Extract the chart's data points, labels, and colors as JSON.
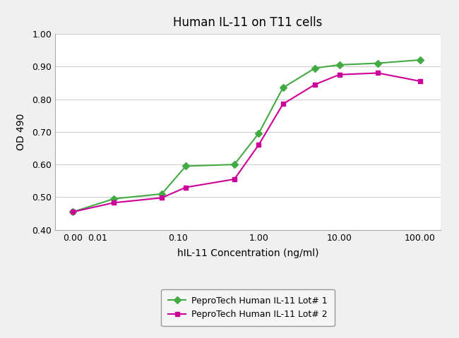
{
  "title": "Human IL-11 on T11 cells",
  "xlabel": "hIL-11 Concentration (ng/ml)",
  "ylabel": "OD 490",
  "lot1_label": "PeproTech Human IL-11 Lot# 1",
  "lot2_label": "PeproTech Human IL-11 Lot# 2",
  "lot1_color": "#44aa44",
  "lot2_color": "#cc0099",
  "lot1_x": [
    0.0,
    0.016,
    0.063,
    0.125,
    0.5,
    1.0,
    2.0,
    5.0,
    10.0,
    30.0,
    100.0
  ],
  "lot1_y": [
    0.455,
    0.495,
    0.51,
    0.595,
    0.6,
    0.695,
    0.835,
    0.895,
    0.905,
    0.91,
    0.92
  ],
  "lot2_x": [
    0.0,
    0.016,
    0.063,
    0.125,
    0.5,
    1.0,
    2.0,
    5.0,
    10.0,
    30.0,
    100.0
  ],
  "lot2_y": [
    0.455,
    0.483,
    0.498,
    0.53,
    0.555,
    0.66,
    0.785,
    0.845,
    0.875,
    0.88,
    0.855
  ],
  "ylim": [
    0.4,
    1.0
  ],
  "yticks": [
    0.4,
    0.5,
    0.6,
    0.7,
    0.8,
    0.9,
    1.0
  ],
  "xtick_labels": [
    "0.00",
    "0.01",
    "0.10",
    "1.00",
    "10.00",
    "100.00"
  ],
  "background_color": "#f0f0f0",
  "plot_bg_color": "#ffffff",
  "grid_color": "#cccccc",
  "spine_color": "#aaaaaa"
}
